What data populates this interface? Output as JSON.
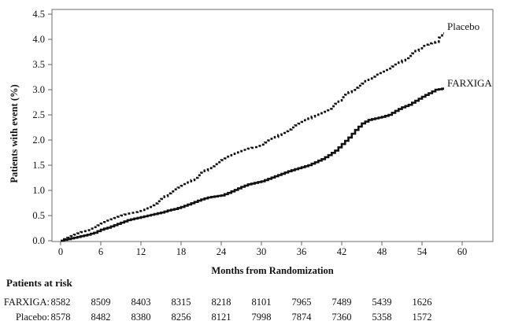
{
  "chart_data": {
    "type": "line",
    "subtype": "kaplan-meier-step",
    "title": "",
    "xlabel": "Months from Randomization",
    "ylabel": "Patients with event (%)",
    "xlim": [
      0,
      64.5
    ],
    "ylim": [
      0,
      4.5
    ],
    "x_ticks": [
      0,
      6,
      12,
      18,
      24,
      30,
      36,
      42,
      48,
      54,
      60
    ],
    "y_ticks": [
      "0.0",
      "0.5",
      "1.0",
      "1.5",
      "2.0",
      "2.5",
      "3.0",
      "3.5",
      "4.0",
      "4.5"
    ],
    "grid": false,
    "legend_position": "end-of-line-labels",
    "months": [
      0,
      1,
      2,
      3,
      4,
      5,
      6,
      7,
      8,
      9,
      10,
      11,
      12,
      13,
      14,
      15,
      16,
      17,
      18,
      19,
      20,
      21,
      22,
      23,
      24,
      25,
      26,
      27,
      28,
      29,
      30,
      31,
      32,
      33,
      34,
      35,
      36,
      37,
      38,
      39,
      40,
      41,
      42,
      43,
      44,
      45,
      46,
      47,
      48,
      49,
      50,
      51,
      52,
      53,
      54,
      55,
      56,
      57
    ],
    "series": [
      {
        "name": "Placebo",
        "line_style": "dotted",
        "color": "#111111",
        "values": [
          0,
          0.06,
          0.12,
          0.17,
          0.21,
          0.27,
          0.34,
          0.4,
          0.45,
          0.5,
          0.54,
          0.57,
          0.61,
          0.67,
          0.74,
          0.83,
          0.94,
          1.02,
          1.09,
          1.16,
          1.25,
          1.35,
          1.44,
          1.52,
          1.6,
          1.67,
          1.73,
          1.78,
          1.83,
          1.86,
          1.91,
          1.99,
          2.06,
          2.14,
          2.21,
          2.29,
          2.36,
          2.43,
          2.5,
          2.56,
          2.62,
          2.72,
          2.85,
          2.95,
          3.04,
          3.12,
          3.22,
          3.3,
          3.36,
          3.42,
          3.5,
          3.58,
          3.67,
          3.77,
          3.87,
          3.92,
          3.95,
          4.12
        ]
      },
      {
        "name": "FARXIGA",
        "line_style": "solid",
        "color": "#111111",
        "values": [
          0,
          0.03,
          0.06,
          0.09,
          0.12,
          0.16,
          0.22,
          0.26,
          0.31,
          0.36,
          0.41,
          0.44,
          0.47,
          0.5,
          0.53,
          0.56,
          0.6,
          0.63,
          0.67,
          0.72,
          0.77,
          0.82,
          0.86,
          0.88,
          0.9,
          0.95,
          1.01,
          1.07,
          1.12,
          1.15,
          1.18,
          1.23,
          1.28,
          1.33,
          1.38,
          1.42,
          1.46,
          1.5,
          1.56,
          1.62,
          1.7,
          1.79,
          1.92,
          2.05,
          2.2,
          2.33,
          2.4,
          2.43,
          2.46,
          2.5,
          2.58,
          2.65,
          2.7,
          2.78,
          2.86,
          2.93,
          3.0,
          3.02
        ]
      }
    ]
  },
  "risk_table": {
    "title": "Patients at risk",
    "months": [
      0,
      6,
      12,
      18,
      24,
      30,
      36,
      42,
      48,
      54
    ],
    "rows": [
      {
        "label": "FARXIGA:",
        "values": [
          "8582",
          "8509",
          "8403",
          "8315",
          "8218",
          "8101",
          "7965",
          "7489",
          "5439",
          "1626"
        ]
      },
      {
        "label": "Placebo:",
        "values": [
          "8578",
          "8482",
          "8380",
          "8256",
          "8121",
          "7998",
          "7874",
          "7360",
          "5358",
          "1572"
        ]
      }
    ]
  }
}
